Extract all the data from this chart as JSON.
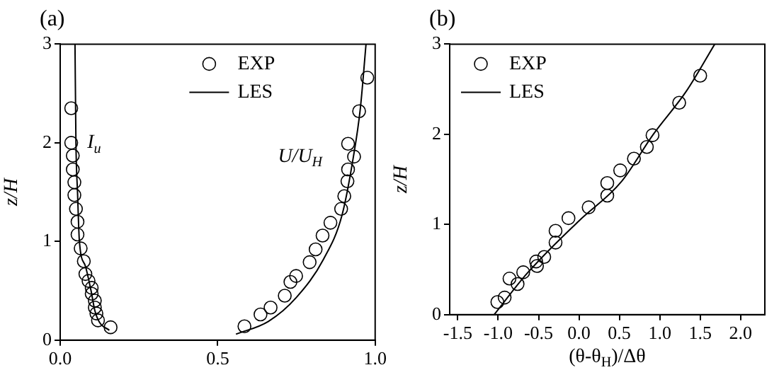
{
  "chart_data": [
    {
      "type": "scatter",
      "title": "(a)",
      "ylabel": "z/H",
      "xlim": [
        0,
        1
      ],
      "xticks": [
        {
          "value": 0,
          "label": "0.0"
        },
        0.5,
        {
          "value": 1,
          "label": "1.0"
        }
      ],
      "ylim": [
        0,
        3
      ],
      "yticks": [
        0,
        1,
        2,
        3
      ],
      "grid": false,
      "legend": "top",
      "annotations": [
        "I$_{u}$",
        "U/U$_{H}$"
      ],
      "series": [
        {
          "name": "EXP",
          "marker": "circle",
          "color": "#000000",
          "x": [
            0.035,
            0.035,
            0.04,
            0.04,
            0.045,
            0.045,
            0.05,
            0.055,
            0.055,
            0.065,
            0.075,
            0.08,
            0.09,
            0.1,
            0.1,
            0.11,
            0.11,
            0.115,
            0.12,
            0.16,
            0.585,
            0.636,
            0.668,
            0.713,
            0.731,
            0.749,
            0.792,
            0.811,
            0.833,
            0.858,
            0.892,
            0.902,
            0.912,
            0.914,
            0.933,
            0.914,
            0.949,
            0.975
          ],
          "values": [
            2.35,
            2.0,
            1.87,
            1.73,
            1.6,
            1.47,
            1.33,
            1.2,
            1.07,
            0.93,
            0.8,
            0.67,
            0.6,
            0.53,
            0.47,
            0.4,
            0.33,
            0.27,
            0.2,
            0.13,
            0.14,
            0.26,
            0.33,
            0.45,
            0.59,
            0.65,
            0.79,
            0.92,
            1.06,
            1.19,
            1.33,
            1.46,
            1.61,
            1.73,
            1.86,
            1.99,
            2.32,
            2.66
          ]
        },
        {
          "name": "LES",
          "type": "line",
          "line_style": "solid",
          "color": "#000000",
          "x": [
            0.047,
            0.05,
            0.055,
            0.061,
            0.08,
            0.098,
            0.11,
            0.125,
            0.156
          ],
          "values": [
            3.0,
            2.0,
            1.5,
            1.0,
            0.75,
            0.5,
            0.3,
            0.18,
            0.1
          ]
        },
        {
          "type": "line",
          "line_style": "solid",
          "color": "#000000",
          "x": [
            0.558,
            0.661,
            0.749,
            0.836,
            0.895,
            0.931,
            0.953,
            0.971
          ],
          "values": [
            0.06,
            0.19,
            0.43,
            0.82,
            1.27,
            1.86,
            2.35,
            3.0
          ]
        }
      ]
    },
    {
      "type": "scatter",
      "title": "(b)",
      "xlabel": "(θ-θ$_{H}$)/Δθ",
      "ylabel": "z/H",
      "xlim": [
        -1.6,
        2.3
      ],
      "xticks": [
        -1.5,
        {
          "value": -1,
          "label": "-1.0"
        },
        -0.5,
        {
          "value": 0,
          "label": "0.0"
        },
        0.5,
        {
          "value": 1,
          "label": "1.0"
        },
        1.5,
        {
          "value": 2,
          "label": "2.0"
        }
      ],
      "ylim": [
        0,
        3
      ],
      "yticks": [
        0,
        1,
        2,
        3
      ],
      "grid": false,
      "legend": "top left",
      "series": [
        {
          "name": "EXP",
          "marker": "circle",
          "color": "#000000",
          "x": [
            -1.01,
            -0.92,
            -0.86,
            -0.76,
            -0.69,
            -0.53,
            -0.52,
            -0.43,
            -0.29,
            -0.29,
            -0.13,
            0.12,
            0.35,
            0.35,
            0.51,
            0.68,
            0.84,
            0.91,
            1.24,
            1.5
          ],
          "values": [
            0.14,
            0.19,
            0.4,
            0.34,
            0.47,
            0.59,
            0.54,
            0.64,
            0.8,
            0.93,
            1.07,
            1.19,
            1.32,
            1.46,
            1.6,
            1.73,
            1.86,
            1.99,
            2.35,
            2.65
          ]
        },
        {
          "name": "LES",
          "type": "line",
          "line_style": "solid",
          "color": "#000000",
          "x": [
            -1.05,
            -0.64,
            0,
            0.52,
            0.92,
            1.33,
            1.68
          ],
          "values": [
            0,
            0.46,
            1.04,
            1.47,
            2.0,
            2.48,
            3.0
          ]
        }
      ]
    }
  ]
}
